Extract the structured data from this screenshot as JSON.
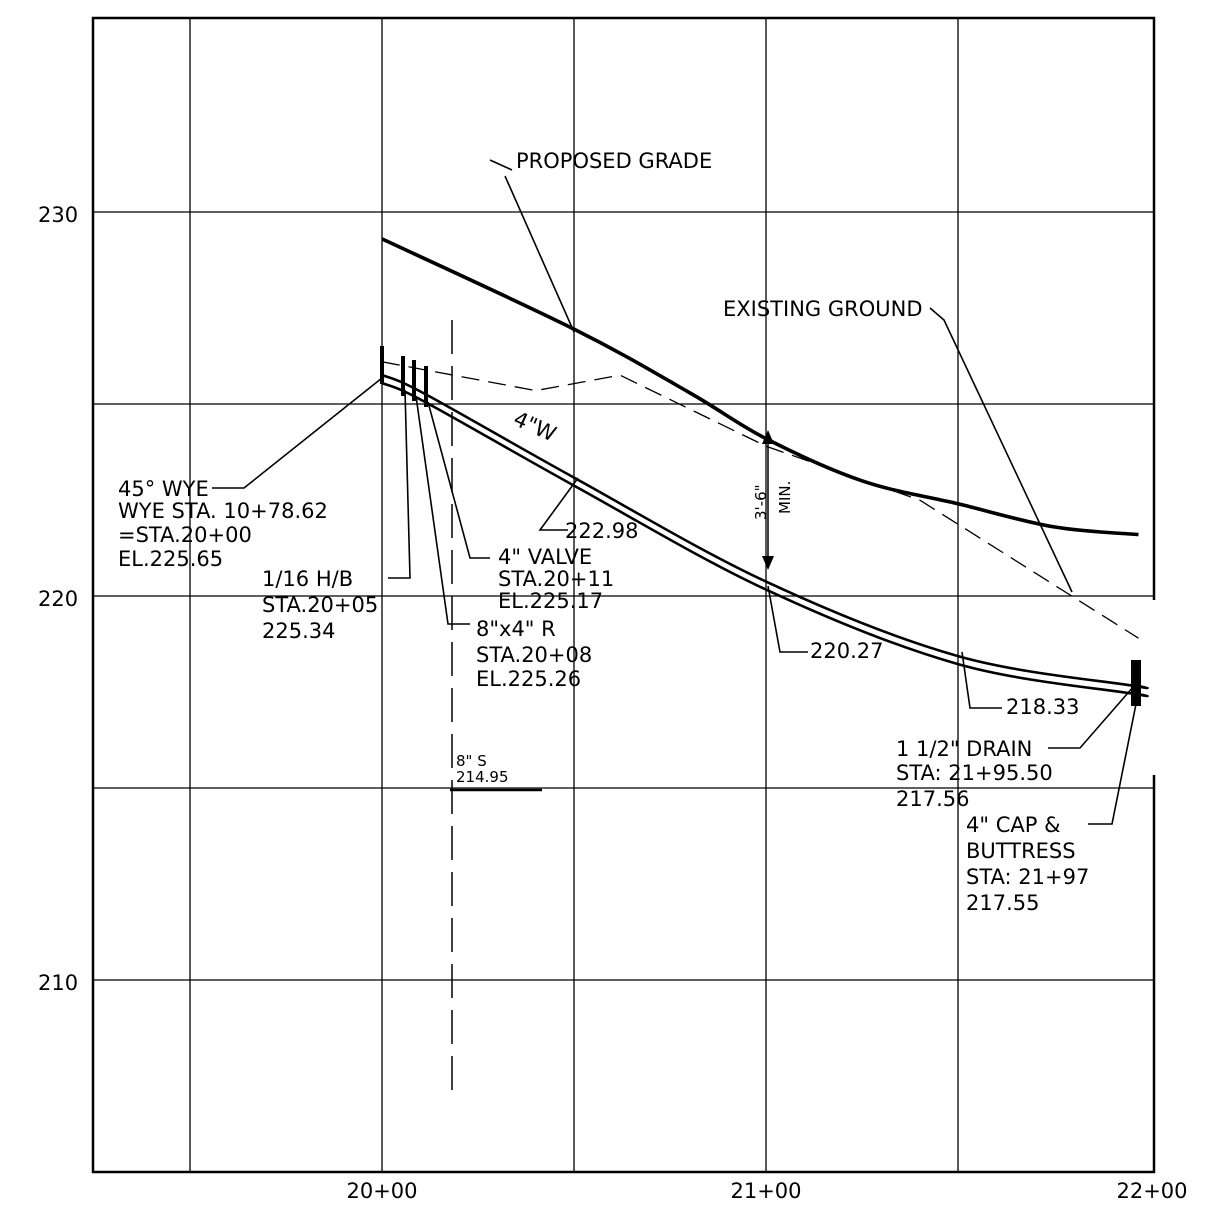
{
  "drawing": {
    "x_axis": {
      "ticks": [
        {
          "label": "20+00",
          "station": 2000
        },
        {
          "label": "21+00",
          "station": 2100
        },
        {
          "label": "22+00",
          "station": 2200
        }
      ],
      "range": [
        1925,
        2200
      ]
    },
    "y_axis": {
      "ticks": [
        {
          "label": "230",
          "elevation": 230
        },
        {
          "label": "220",
          "elevation": 220
        },
        {
          "label": "210",
          "elevation": 210
        }
      ],
      "range": [
        204.5,
        235
      ]
    },
    "grid": true,
    "profiles": {
      "proposed_grade": {
        "label": "PROPOSED GRADE",
        "points": [
          [
            2000,
            229.3
          ],
          [
            2050,
            226.95
          ],
          [
            2080,
            225.3
          ],
          [
            2100,
            224.1
          ],
          [
            2125,
            223.0
          ],
          [
            2150,
            222.4
          ],
          [
            2175,
            221.8
          ],
          [
            2197,
            221.6
          ]
        ]
      },
      "existing_ground": {
        "label": "EXISTING GROUND",
        "points": [
          [
            2000,
            226.1
          ],
          [
            2040,
            225.35
          ],
          [
            2062,
            225.75
          ],
          [
            2100,
            223.9
          ],
          [
            2140,
            222.5
          ],
          [
            2197,
            218.9
          ]
        ]
      },
      "water_main": {
        "label": "4\"W",
        "points": [
          [
            2000,
            225.65
          ],
          [
            2011,
            225.17
          ],
          [
            2050,
            222.98
          ],
          [
            2100,
            220.27
          ],
          [
            2150,
            218.33
          ],
          [
            2195.5,
            217.56
          ],
          [
            2197,
            217.55
          ]
        ]
      }
    },
    "min_cover_label": "3'-6\"",
    "min_cover_sublabel": "MIN.",
    "annotations": {
      "wye": [
        "45° WYE",
        "WYE STA. 10+78.62",
        "=STA.20+00",
        "EL.225.65"
      ],
      "hb": [
        "1/16 H/B",
        "STA.20+05",
        "225.34"
      ],
      "valve": [
        "4\" VALVE",
        "STA.20+11",
        "EL.225.17"
      ],
      "reducer": [
        "8\"x4\" R",
        "STA.20+08",
        "EL.225.26"
      ],
      "elev_1": "222.98",
      "elev_2": "220.27",
      "elev_3": "218.33",
      "drain": [
        "1 1/2\" DRAIN",
        "STA: 21+95.50",
        "217.56"
      ],
      "cap": [
        "4\" CAP &",
        "BUTTRESS",
        "STA: 21+97",
        "217.55"
      ],
      "sewer": [
        "8\" S",
        "214.95"
      ]
    }
  }
}
